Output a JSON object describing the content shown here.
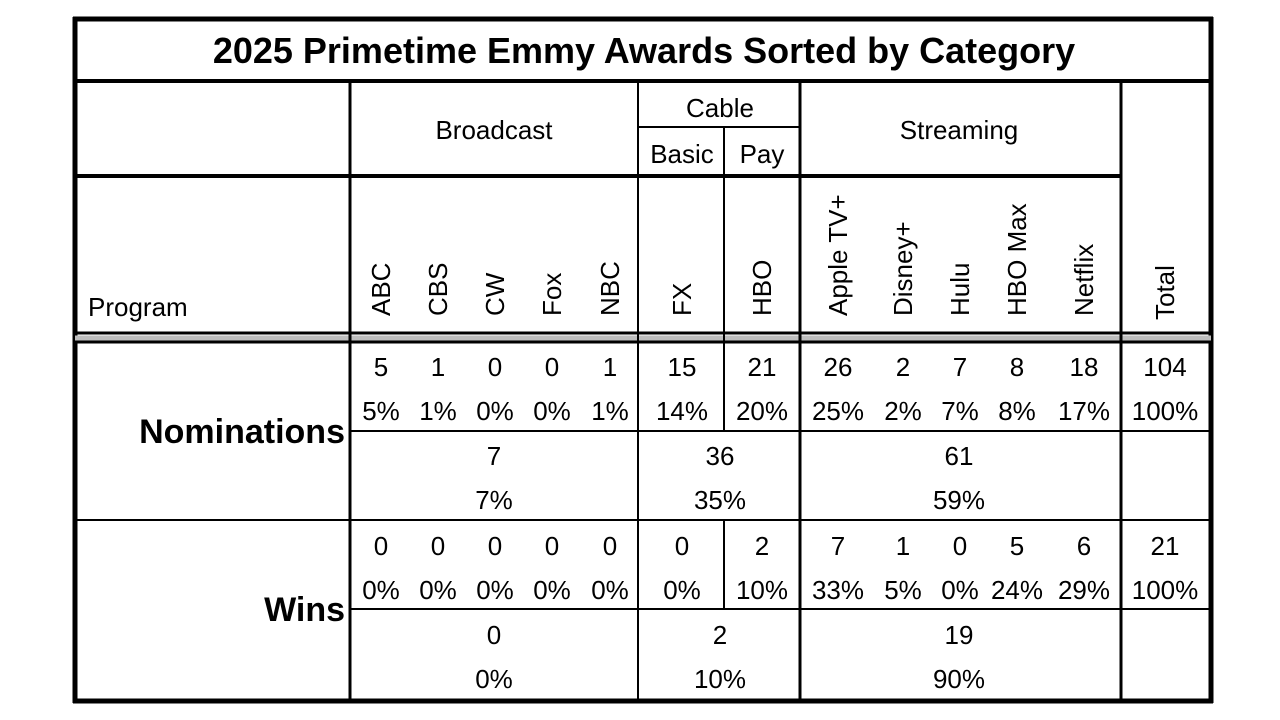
{
  "chart_data": {
    "type": "table",
    "title": "2025 Primetime Emmy Awards Sorted by Category",
    "group_headers": {
      "broadcast": "Broadcast",
      "cable": "Cable",
      "cable_basic": "Basic",
      "cable_pay": "Pay",
      "streaming": "Streaming"
    },
    "program_label": "Program",
    "networks": [
      "ABC",
      "CBS",
      "CW",
      "Fox",
      "NBC",
      "FX",
      "HBO",
      "Apple TV+",
      "Disney+",
      "Hulu",
      "HBO Max",
      "Netflix"
    ],
    "total_label": "Total",
    "rows": {
      "nominations": {
        "label": "Nominations",
        "counts": [
          5,
          1,
          0,
          0,
          1,
          15,
          21,
          26,
          2,
          7,
          8,
          18
        ],
        "count_text": [
          "5",
          "1",
          "0",
          "0",
          "1",
          "15",
          "21",
          "26",
          "2",
          "7",
          "8",
          "18"
        ],
        "percents": [
          "5%",
          "1%",
          "0%",
          "0%",
          "1%",
          "14%",
          "20%",
          "25%",
          "2%",
          "7%",
          "8%",
          "17%"
        ],
        "total": "104",
        "total_pct": "100%",
        "group_counts": [
          "7",
          "36",
          "61"
        ],
        "group_pcts": [
          "7%",
          "35%",
          "59%"
        ]
      },
      "wins": {
        "label": "Wins",
        "counts": [
          0,
          0,
          0,
          0,
          0,
          0,
          2,
          7,
          1,
          0,
          5,
          6
        ],
        "count_text": [
          "0",
          "0",
          "0",
          "0",
          "0",
          "0",
          "2",
          "7",
          "1",
          "0",
          "5",
          "6"
        ],
        "percents": [
          "0%",
          "0%",
          "0%",
          "0%",
          "0%",
          "0%",
          "10%",
          "33%",
          "5%",
          "0%",
          "24%",
          "29%"
        ],
        "total": "21",
        "total_pct": "100%",
        "group_counts": [
          "0",
          "2",
          "19"
        ],
        "group_pcts": [
          "0%",
          "10%",
          "90%"
        ]
      }
    }
  }
}
